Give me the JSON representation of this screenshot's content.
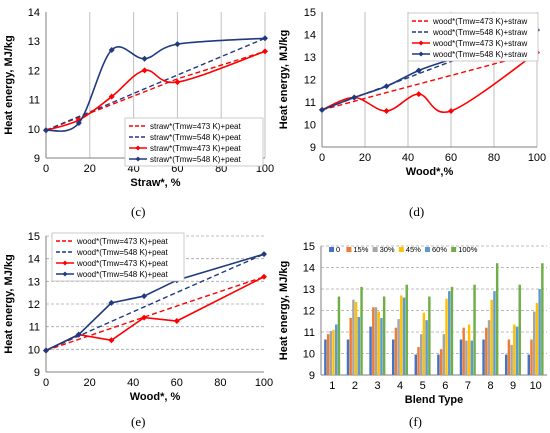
{
  "chart_data": [
    {
      "type": "line",
      "caption": "(c)",
      "xlabel": "Straw*, %",
      "ylabel": "Heat energy, MJ/kg",
      "xlim": [
        0,
        100
      ],
      "ylim": [
        9,
        14
      ],
      "xticks": [
        0,
        20,
        40,
        60,
        80,
        100
      ],
      "yticks": [
        9,
        10,
        11,
        12,
        13,
        14
      ],
      "grid": "vertical",
      "legend_position": "bottom-right",
      "x": [
        0,
        15,
        30,
        45,
        60,
        100
      ],
      "series": [
        {
          "name": "straw*(Tmw=473 K)+peat",
          "color": "#ff0000",
          "dash": true,
          "curve": false,
          "marker": false,
          "values": [
            9.95,
            10.39,
            10.83,
            11.27,
            11.71,
            12.65
          ]
        },
        {
          "name": "straw*(Tmw=548 K)+peat",
          "color": "#1f3a80",
          "dash": true,
          "curve": false,
          "marker": false,
          "values": [
            9.95,
            10.42,
            10.89,
            11.37,
            11.84,
            13.1
          ]
        },
        {
          "name": "straw*(Tmw=473 K)+peat",
          "color": "#ff0000",
          "dash": false,
          "curve": true,
          "marker": true,
          "values": [
            9.95,
            10.3,
            11.1,
            12.0,
            11.6,
            12.65
          ]
        },
        {
          "name": "straw*(Tmw=548 K)+peat",
          "color": "#1f3a80",
          "dash": false,
          "curve": true,
          "marker": true,
          "values": [
            9.95,
            10.2,
            12.7,
            12.4,
            12.9,
            13.1
          ]
        }
      ]
    },
    {
      "type": "line",
      "caption": "(d)",
      "xlabel": "Wood*,%",
      "ylabel": "Heat energy, MJ/kg",
      "xlim": [
        0,
        100
      ],
      "ylim": [
        9,
        15
      ],
      "xticks": [
        0,
        20,
        40,
        60,
        80,
        100
      ],
      "yticks": [
        9,
        10,
        11,
        12,
        13,
        14,
        15
      ],
      "grid": "vertical",
      "legend_position": "top-right",
      "x": [
        0,
        15,
        30,
        45,
        60,
        100
      ],
      "series": [
        {
          "name": "wood*(Tmw=473 K)+straw",
          "color": "#ff0000",
          "dash": true,
          "curve": false,
          "marker": false,
          "values": [
            10.65,
            11.03,
            11.42,
            11.8,
            12.18,
            13.2
          ]
        },
        {
          "name": "wood*(Tmw=548 K)+straw",
          "color": "#1f3a80",
          "dash": true,
          "curve": false,
          "marker": false,
          "values": [
            10.65,
            11.19,
            11.72,
            12.26,
            12.8,
            14.2
          ]
        },
        {
          "name": "wood*(Tmw=473 K)+straw",
          "color": "#ff0000",
          "dash": false,
          "curve": true,
          "marker": true,
          "values": [
            10.65,
            11.2,
            10.6,
            11.35,
            10.6,
            13.2
          ]
        },
        {
          "name": "wood*(Tmw=548 K)+straw",
          "color": "#1f3a80",
          "dash": false,
          "curve": true,
          "marker": true,
          "values": [
            10.65,
            11.2,
            11.7,
            12.4,
            12.9,
            14.2
          ]
        }
      ]
    },
    {
      "type": "line",
      "caption": "(e)",
      "xlabel": "Wood*, %",
      "ylabel": "Heat energy, MJ/kg",
      "xlim": [
        0,
        100
      ],
      "ylim": [
        9,
        15
      ],
      "xticks": [
        0,
        20,
        40,
        60,
        80,
        100
      ],
      "yticks": [
        9,
        10,
        11,
        12,
        13,
        14,
        15
      ],
      "grid": "horizontal",
      "legend_position": "top-left",
      "x": [
        0,
        15,
        30,
        45,
        60,
        100
      ],
      "series": [
        {
          "name": "wood*(Tmw=473 K)+peat",
          "color": "#ff0000",
          "dash": true,
          "curve": false,
          "marker": false,
          "values": [
            9.95,
            10.44,
            10.93,
            11.42,
            11.91,
            13.2
          ]
        },
        {
          "name": "wood*(Tmw=548 K)+peat",
          "color": "#1f3a80",
          "dash": true,
          "curve": false,
          "marker": false,
          "values": [
            9.95,
            10.59,
            11.23,
            11.87,
            12.51,
            14.2
          ]
        },
        {
          "name": "wood*(Tmw=473 K)+peat",
          "color": "#ff0000",
          "dash": false,
          "curve": false,
          "marker": true,
          "values": [
            9.95,
            10.65,
            10.4,
            11.4,
            11.25,
            13.2
          ]
        },
        {
          "name": "wood*(Tmw=548 K)+peat",
          "color": "#1f3a80",
          "dash": false,
          "curve": false,
          "marker": true,
          "values": [
            9.95,
            10.65,
            12.05,
            12.35,
            13.05,
            14.2
          ]
        }
      ]
    },
    {
      "type": "bar",
      "caption": "(f)",
      "xlabel": "Blend Type",
      "ylabel": "Heat energy, MJ/kg",
      "ylim": [
        9,
        15
      ],
      "yticks": [
        9,
        10,
        11,
        12,
        13,
        14,
        15
      ],
      "grid": "horizontal",
      "legend_position": "top",
      "categories": [
        "1",
        "2",
        "3",
        "4",
        "5",
        "6",
        "7",
        "8",
        "9",
        "10"
      ],
      "series": [
        {
          "name": "0",
          "color": "#4472c4",
          "values": [
            10.65,
            10.65,
            11.25,
            10.65,
            9.95,
            9.95,
            10.65,
            10.65,
            9.95,
            9.95
          ]
        },
        {
          "name": "15%",
          "color": "#ed7d31",
          "values": [
            10.9,
            11.65,
            12.15,
            11.2,
            10.3,
            10.2,
            11.2,
            11.2,
            10.65,
            10.65
          ]
        },
        {
          "name": "30%",
          "color": "#a5a5a5",
          "values": [
            11.05,
            12.5,
            12.15,
            11.6,
            10.9,
            10.9,
            10.6,
            11.55,
            10.4,
            11.95
          ]
        },
        {
          "name": "45%",
          "color": "#ffc000",
          "values": [
            11.1,
            12.4,
            11.95,
            12.7,
            11.9,
            12.55,
            11.35,
            12.5,
            11.35,
            12.35
          ]
        },
        {
          "name": "60%",
          "color": "#5b9bd5",
          "values": [
            11.35,
            11.7,
            11.65,
            12.6,
            11.55,
            12.9,
            10.6,
            12.9,
            11.25,
            13.0
          ]
        },
        {
          "name": "100%",
          "color": "#70ad47",
          "values": [
            12.65,
            13.1,
            12.65,
            13.2,
            12.65,
            13.1,
            13.2,
            14.2,
            13.2,
            14.2
          ]
        }
      ]
    }
  ]
}
